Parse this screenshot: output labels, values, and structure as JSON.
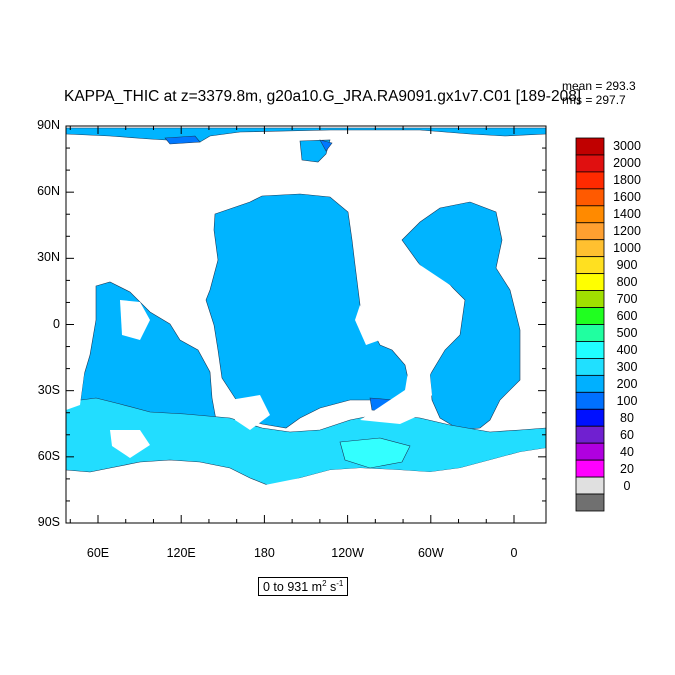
{
  "title": "KAPPA_THIC at z=3379.8m, g20a10.G_JRA.RA9091.gx1v7.C01 [189-208]",
  "stats": {
    "mean": "mean = 293.3",
    "rms": "rms = 297.7"
  },
  "lat_labels": [
    "90N",
    "60N",
    "30N",
    "0",
    "30S",
    "60S",
    "90S"
  ],
  "lon_labels": [
    "60E",
    "120E",
    "180",
    "120W",
    "60W",
    "0"
  ],
  "colorbar": {
    "labels": [
      "3000",
      "2000",
      "1800",
      "1600",
      "1400",
      "1200",
      "1000",
      "900",
      "800",
      "700",
      "600",
      "500",
      "400",
      "300",
      "200",
      "100",
      "80",
      "60",
      "40",
      "20",
      "0"
    ],
    "colors": [
      "#c00000",
      "#e01010",
      "#ff2a00",
      "#ff5a00",
      "#ff8a00",
      "#ffa030",
      "#ffc030",
      "#ffe020",
      "#ffff00",
      "#a0e000",
      "#20ff20",
      "#20ffa0",
      "#20ffff",
      "#20e0ff",
      "#00b0ff",
      "#0070ff",
      "#0010ff",
      "#7020d0",
      "#b000e0",
      "#ff00ff",
      "#e0e0e0",
      "#707070"
    ]
  },
  "range_text": {
    "prefix": "0 to 931 m",
    "exp1": "2",
    "mid": " s",
    "exp2": "-1"
  },
  "map_colors": {
    "ocean_main": "#00b4ff",
    "ocean_light": "#22ddff",
    "ocean_cyan": "#33ffff",
    "ocean_dark": "#0078ff",
    "ocean_green": "#22c060",
    "land": "#ffffff"
  }
}
